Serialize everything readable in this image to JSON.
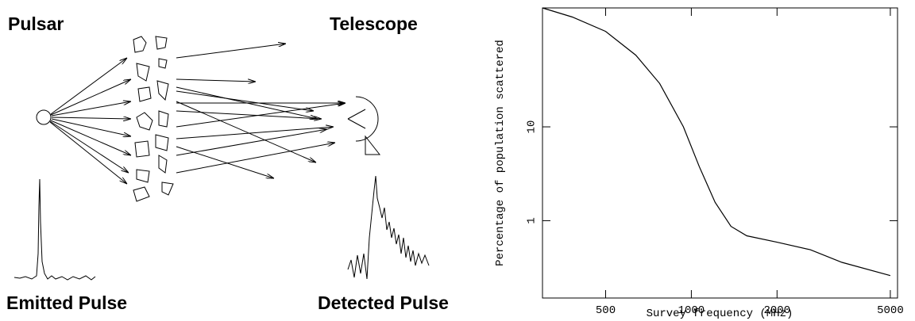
{
  "diagram": {
    "labels": [
      "Pulsar",
      "Telescope",
      "Emitted Pulse",
      "Detected Pulse"
    ]
  },
  "chart_data": {
    "type": "line",
    "xlabel": "Survey frequency (MHz)",
    "ylabel": "Percentage of population scattered",
    "xscale": "log",
    "yscale": "log",
    "xlim": [
      300,
      5300
    ],
    "ylim": [
      0.15,
      185
    ],
    "xticks": [
      500,
      1000,
      2000,
      5000
    ],
    "yticks": [
      1,
      10
    ],
    "color": "#000000",
    "x": [
      300,
      382,
      500,
      638,
      774,
      938,
      1066,
      1212,
      1378,
      1566,
      2000,
      2617,
      3380,
      5000
    ],
    "values": [
      185,
      148,
      104,
      58,
      29,
      10,
      3.77,
      1.57,
      0.87,
      0.69,
      0.59,
      0.49,
      0.36,
      0.26
    ]
  }
}
